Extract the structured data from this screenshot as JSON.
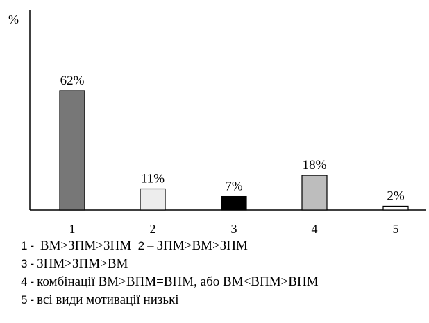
{
  "chart_data": {
    "type": "bar",
    "ylabel": "%",
    "ylim": [
      0,
      62
    ],
    "categories": [
      "1",
      "2",
      "3",
      "4",
      "5"
    ],
    "values": [
      62,
      11,
      7,
      18,
      2
    ],
    "value_labels": [
      "62%",
      "11%",
      "7%",
      "18%",
      "2%"
    ],
    "bar_colors": [
      "#777777",
      "#ededed",
      "#000000",
      "#bdbdbd",
      "#ffffff"
    ],
    "grid": false,
    "legend": [
      {
        "num": "1",
        "dash": "-",
        "text": "ВМ>ЗПМ>ЗНМ"
      },
      {
        "num": "2",
        "dash": "–",
        "text": "ЗПМ>ВМ>ЗНМ"
      },
      {
        "num": "3",
        "dash": "-",
        "text": "ЗНМ>ЗПМ>ВМ"
      },
      {
        "num": "4",
        "dash": "-",
        "text": "комбінації ВМ>ВПМ=ВНМ, або ВМ<ВПМ>ВНМ"
      },
      {
        "num": "5",
        "dash": "-",
        "text": "всі види мотивації низькі"
      }
    ]
  }
}
